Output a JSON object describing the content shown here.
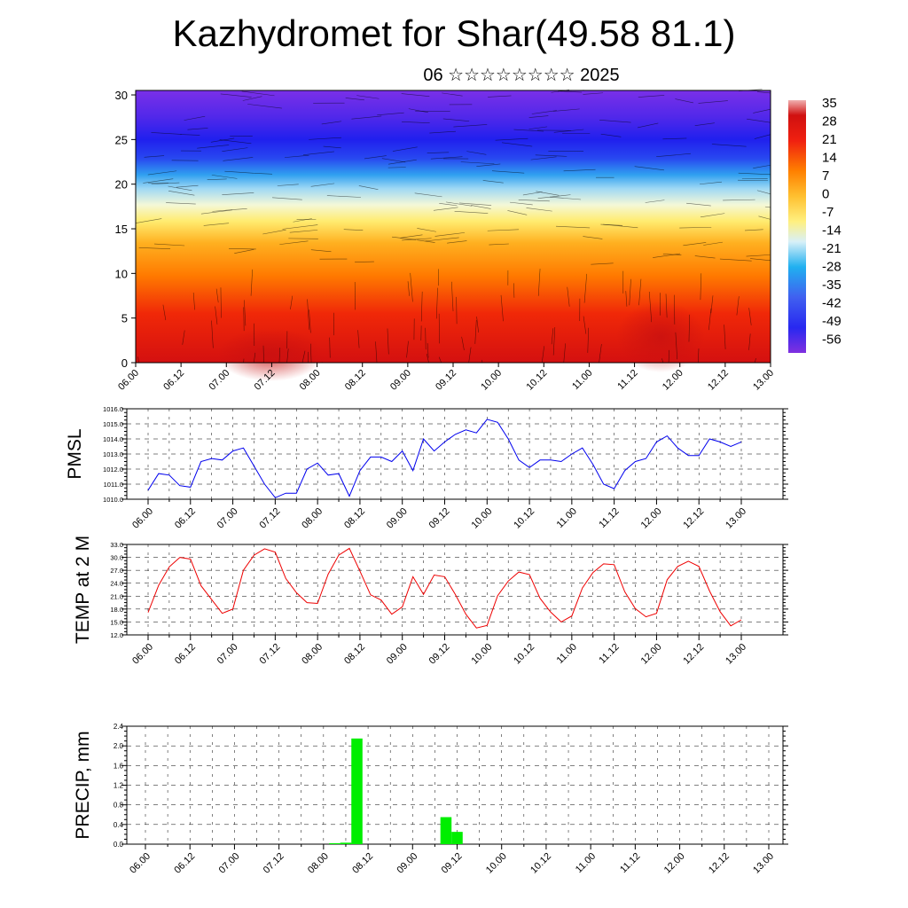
{
  "header": {
    "title": "Kazhydromet for Shar(49.58 81.1)",
    "subtitle": "06 ☆☆☆☆☆☆☆☆ 2025"
  },
  "x_tick_labels": [
    "06.00",
    "06.12",
    "07.00",
    "07.12",
    "08.00",
    "08.12",
    "09.00",
    "09.12",
    "10.00",
    "10.12",
    "11.00",
    "11.12",
    "12.00",
    "12.12",
    "13.00"
  ],
  "chart_data": [
    {
      "type": "heatmap",
      "yticks": [
        0,
        5,
        10,
        15,
        20,
        25,
        30
      ],
      "ylim": [
        0,
        30.5
      ],
      "colorbar_labels": [
        "35",
        "28",
        "21",
        "14",
        "7",
        "0",
        "-7",
        "-14",
        "-21",
        "-28",
        "-35",
        "-42",
        "-49",
        "-56"
      ],
      "colors": {
        "hot": "#e01010",
        "warm": "#ff8a00",
        "yellow": "#ffee70",
        "pale": "#e8f4f8",
        "cyan": "#30b8f0",
        "blue": "#2030f0",
        "violet": "#7020e8"
      }
    },
    {
      "type": "line",
      "ylabel": "PMSL",
      "color": "#0000ee",
      "ylim": [
        1010,
        1016
      ],
      "yticks": [
        "1010.0",
        "1011.0",
        "1012.0",
        "1013.0",
        "1014.0",
        "1015.0",
        "1016.0"
      ],
      "x_hours": [
        0,
        3,
        6,
        9,
        12,
        15,
        18,
        21,
        24,
        27,
        30,
        33,
        36,
        39,
        42,
        45,
        48,
        51,
        54,
        57,
        60,
        63,
        66,
        69,
        72,
        75,
        78,
        81,
        84,
        87,
        90,
        93,
        96,
        99,
        102,
        105,
        108,
        111,
        114,
        117,
        120,
        123,
        126,
        129,
        132,
        135,
        138,
        141,
        144,
        147,
        150,
        153,
        156,
        159,
        162,
        165,
        168
      ],
      "values": [
        1010.6,
        1011.7,
        1011.6,
        1010.9,
        1010.8,
        1012.5,
        1012.7,
        1012.6,
        1013.2,
        1013.4,
        1012.2,
        1011.0,
        1010.1,
        1010.4,
        1010.4,
        1012.0,
        1012.4,
        1011.6,
        1011.7,
        1010.2,
        1011.9,
        1012.8,
        1012.8,
        1012.5,
        1013.2,
        1011.9,
        1014.0,
        1013.2,
        1013.8,
        1014.3,
        1014.6,
        1014.4,
        1015.3,
        1015.1,
        1014.0,
        1012.6,
        1012.1,
        1012.6,
        1012.6,
        1012.5,
        1013.0,
        1013.4,
        1012.3,
        1011.0,
        1010.7,
        1011.9,
        1012.5,
        1012.7,
        1013.8,
        1014.2,
        1013.4,
        1012.9,
        1012.9,
        1014.0,
        1013.8,
        1013.5,
        1013.8
      ]
    },
    {
      "type": "line",
      "ylabel": "TEMP at 2 M",
      "color": "#ee0000",
      "ylim": [
        12,
        33
      ],
      "yticks": [
        "12.0",
        "15.0",
        "18.0",
        "21.0",
        "24.0",
        "27.0",
        "30.0",
        "33.0"
      ],
      "x_hours": [
        0,
        3,
        6,
        9,
        12,
        15,
        18,
        21,
        24,
        27,
        30,
        33,
        36,
        39,
        42,
        45,
        48,
        51,
        54,
        57,
        60,
        63,
        66,
        69,
        72,
        75,
        78,
        81,
        84,
        87,
        90,
        93,
        96,
        99,
        102,
        105,
        108,
        111,
        114,
        117,
        120,
        123,
        126,
        129,
        132,
        135,
        138,
        141,
        144,
        147,
        150,
        153,
        156,
        159,
        162,
        165,
        168
      ],
      "values": [
        17.2,
        23.5,
        27.8,
        30.0,
        29.6,
        23.4,
        20.2,
        17.0,
        18.0,
        27.0,
        30.5,
        32.0,
        31.2,
        25.1,
        21.8,
        19.5,
        19.3,
        26.1,
        30.5,
        32.1,
        26.8,
        21.3,
        20.1,
        16.8,
        18.5,
        25.5,
        21.4,
        25.9,
        25.5,
        21.4,
        16.8,
        13.6,
        14.2,
        21.1,
        24.5,
        26.6,
        26.0,
        20.5,
        17.3,
        15.0,
        16.4,
        22.9,
        26.5,
        28.5,
        28.3,
        22.0,
        18.1,
        16.2,
        17.0,
        24.8,
        27.9,
        29.1,
        27.9,
        22.2,
        17.4,
        14.1,
        15.5
      ]
    },
    {
      "type": "bar",
      "ylabel": "PRECIP, mm",
      "color": "#00ee00",
      "ylim": [
        0,
        2.4
      ],
      "yticks": [
        "0.0",
        "0.4",
        "0.8",
        "1.2",
        "1.6",
        "2.0",
        "2.4"
      ],
      "x_hours": [
        51,
        54,
        57,
        60,
        81,
        84
      ],
      "values": [
        0.02,
        0.03,
        2.15,
        0.0,
        0.55,
        0.25
      ]
    }
  ]
}
